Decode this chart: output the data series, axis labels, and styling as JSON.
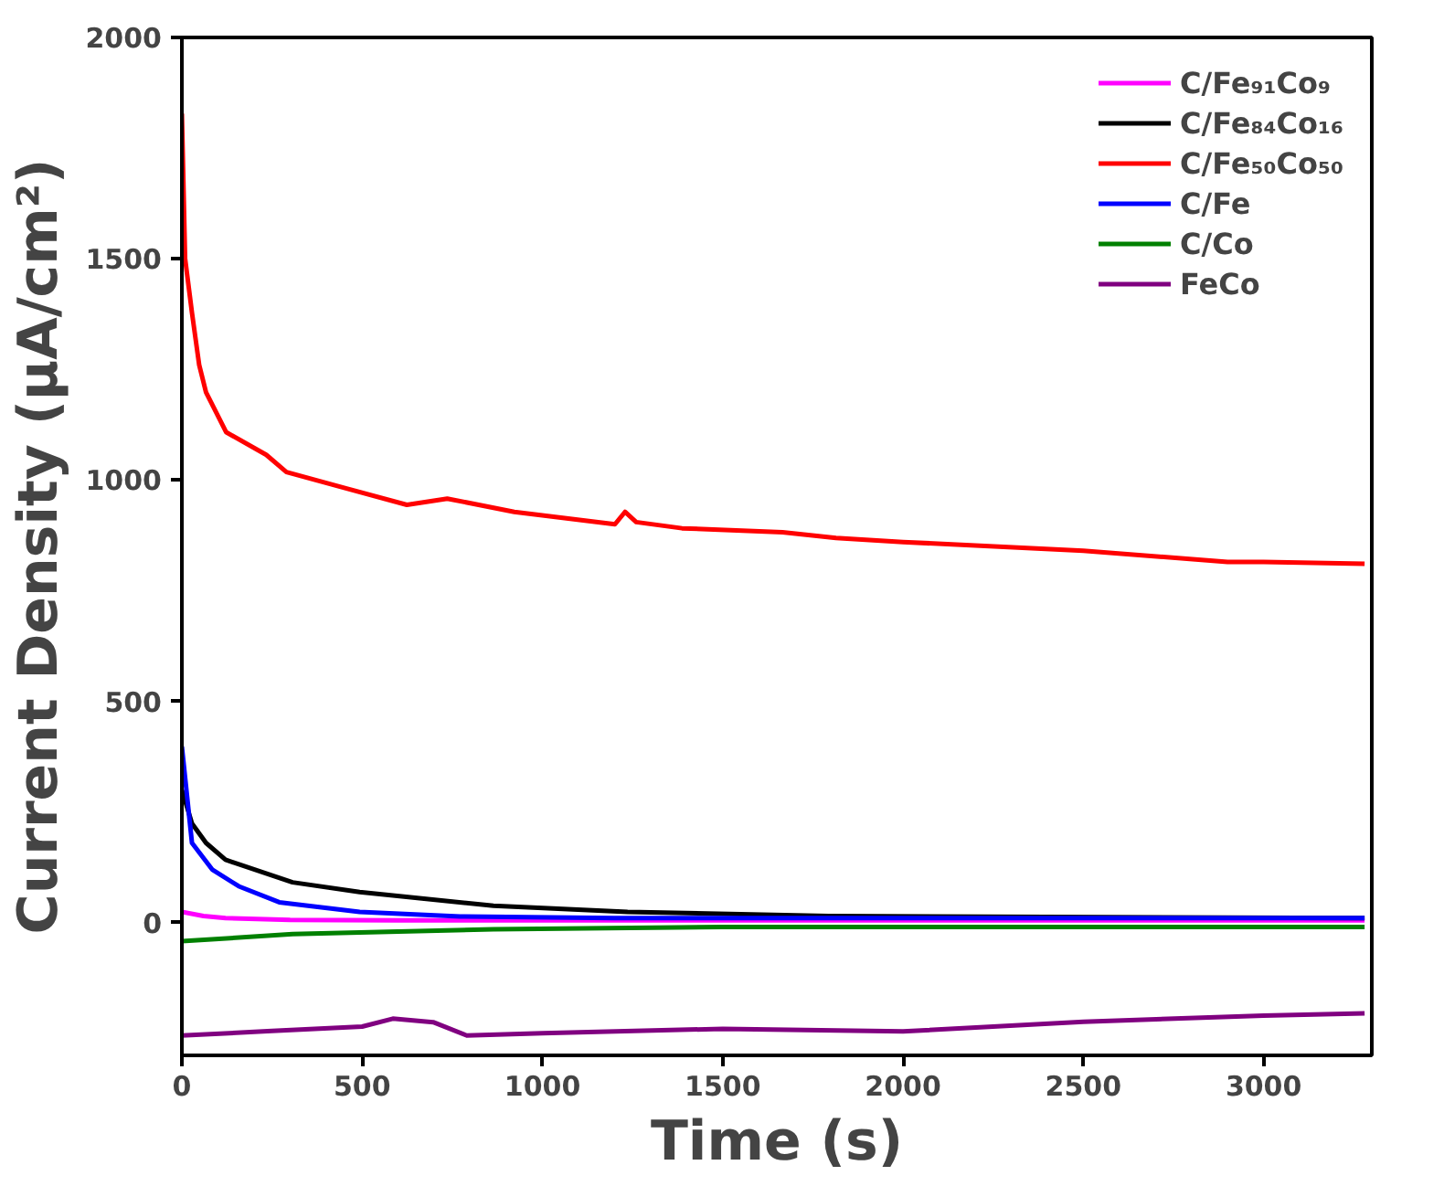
{
  "chart_data": {
    "type": "line",
    "xlabel": "Time (s)",
    "ylabel": "Current Density (μA/cm²)",
    "xlim": [
      0,
      3300
    ],
    "ylim": [
      -300,
      2000
    ],
    "xticks": [
      0,
      500,
      1000,
      1500,
      2000,
      2500,
      3000
    ],
    "yticks": [
      0,
      500,
      1000,
      1500,
      2000
    ],
    "grid": false,
    "legend": "top right",
    "line_style": "solid",
    "marker": "none",
    "series": [
      {
        "name": "C/Fe₉₁Co₉",
        "color": "#ff00ff",
        "x": [
          0,
          60,
          121,
          300,
          600,
          1000,
          2000,
          3280
        ],
        "values": [
          24,
          15,
          10,
          6,
          5,
          5,
          5,
          5
        ]
      },
      {
        "name": "C/Fe₈₄Co₁₆",
        "color": "#000000",
        "x": [
          0,
          28,
          67,
          121,
          307,
          493,
          864,
          1236,
          1793,
          3280
        ],
        "values": [
          300,
          224,
          180,
          142,
          91,
          69,
          38,
          24,
          15,
          10
        ]
      },
      {
        "name": "C/Fe₅₀Co₅₀",
        "color": "#ff0000",
        "x": [
          0,
          9,
          28,
          48,
          67,
          123,
          234,
          290,
          457,
          624,
          736,
          922,
          1201,
          1229,
          1260,
          1387,
          1666,
          1814,
          2000,
          2500,
          2900,
          3000,
          3280
        ],
        "values": [
          1828,
          1500,
          1378,
          1260,
          1198,
          1108,
          1057,
          1018,
          981,
          944,
          958,
          928,
          900,
          928,
          905,
          891,
          882,
          869,
          860,
          840,
          815,
          815,
          811
        ]
      },
      {
        "name": "C/Fe",
        "color": "#0000ff",
        "x": [
          0,
          28,
          84,
          158,
          270,
          493,
          771,
          1200,
          2000,
          3280
        ],
        "values": [
          398,
          180,
          120,
          82,
          46,
          24,
          14,
          10,
          10,
          10
        ]
      },
      {
        "name": "C/Co",
        "color": "#008000",
        "x": [
          0,
          307,
          864,
          1500,
          2000,
          3280
        ],
        "values": [
          -42,
          -26,
          -15,
          -10,
          -10,
          -10
        ]
      },
      {
        "name": "FeCo",
        "color": "#800080",
        "x": [
          0,
          250,
          500,
          585,
          697,
          790,
          1000,
          1500,
          2000,
          2500,
          3000,
          3280
        ],
        "values": [
          -255,
          -245,
          -235,
          -217,
          -225,
          -255,
          -250,
          -240,
          -246,
          -224,
          -210,
          -205
        ]
      }
    ]
  }
}
